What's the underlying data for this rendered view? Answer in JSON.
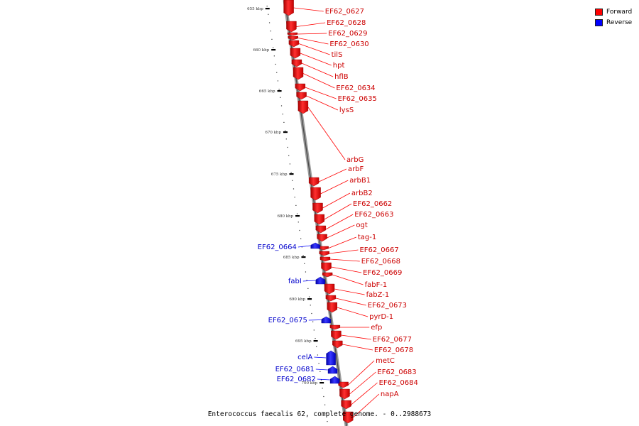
{
  "legend": {
    "forward_label": "Forward",
    "reverse_label": "Reverse",
    "forward_color": "#ff0000",
    "reverse_color": "#0000ff"
  },
  "caption": "Enterococcus faecalis 62, complete genome. - 0..2988673",
  "ticks": [
    "655 kbp",
    "660 kbp",
    "665 kbp",
    "670 kbp",
    "675 kbp",
    "680 kbp",
    "685 kbp",
    "690 kbp",
    "695 kbp",
    "700 kbp"
  ],
  "forward_genes": [
    "EF62_0627",
    "EF62_0628",
    "EF62_0629",
    "EF62_0630",
    "tilS",
    "hpt",
    "hflB",
    "EF62_0634",
    "EF62_0635",
    "lysS",
    "arbG",
    "arbF",
    "arbB1",
    "arbB2",
    "EF62_0662",
    "EF62_0663",
    "ogt",
    "tag-1",
    "EF62_0667",
    "EF62_0668",
    "EF62_0669",
    "fabF-1",
    "fabZ-1",
    "EF62_0673",
    "pyrD-1",
    "efp",
    "EF62_0677",
    "EF62_0678",
    "metC",
    "EF62_0683",
    "EF62_0684",
    "napA"
  ],
  "reverse_genes": [
    "EF62_0664",
    "fabI",
    "EF62_0675",
    "celA",
    "EF62_0681",
    "EF62_0682"
  ]
}
